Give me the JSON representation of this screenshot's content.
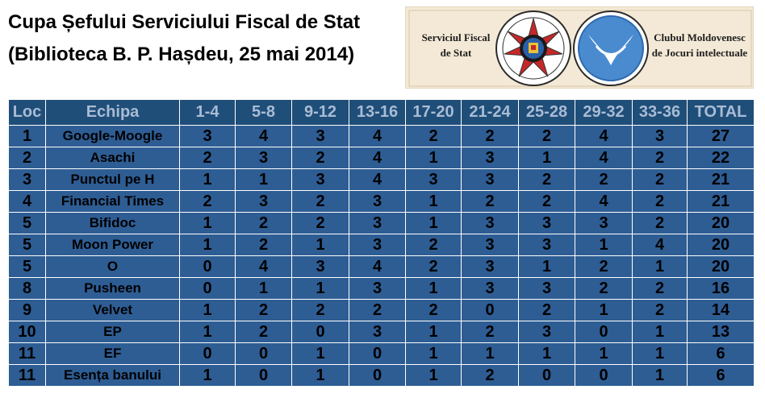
{
  "title": {
    "line1": "Cupa Șefului Serviciului Fiscal de Stat",
    "line2": "(Biblioteca B. P. Hașdeu, 25 mai 2014)"
  },
  "banner": {
    "left_line1": "Serviciul Fiscal",
    "left_line2": "de Stat",
    "right_line1": "Clubul Moldovenesc",
    "right_line2": "de Jocuri intelectuale",
    "seal_text": "SERVICIUL FISCAL",
    "emblem_icon": "tax-service-emblem-icon",
    "club_icon": "club-logo-icon"
  },
  "colors": {
    "header_bg": "#1f4e79",
    "header_text": "#a9bcd4",
    "body_bg": "#2e5d94",
    "body_text": "#000000",
    "banner_bg": "#f3e9d6"
  },
  "table": {
    "headers": [
      "Loc",
      "Echipa",
      "1-4",
      "5-8",
      "9-12",
      "13-16",
      "17-20",
      "21-24",
      "25-28",
      "29-32",
      "33-36",
      "TOTAL"
    ],
    "rows": [
      [
        "1",
        "Google-Moogle",
        "3",
        "4",
        "3",
        "4",
        "2",
        "2",
        "2",
        "4",
        "3",
        "27"
      ],
      [
        "2",
        "Asachi",
        "2",
        "3",
        "2",
        "4",
        "1",
        "3",
        "1",
        "4",
        "2",
        "22"
      ],
      [
        "3",
        "Punctul pe H",
        "1",
        "1",
        "3",
        "4",
        "3",
        "3",
        "2",
        "2",
        "2",
        "21"
      ],
      [
        "4",
        "Financial Times",
        "2",
        "3",
        "2",
        "3",
        "1",
        "2",
        "2",
        "4",
        "2",
        "21"
      ],
      [
        "5",
        "Bifidoc",
        "1",
        "2",
        "2",
        "3",
        "1",
        "3",
        "3",
        "3",
        "2",
        "20"
      ],
      [
        "5",
        "Moon Power",
        "1",
        "2",
        "1",
        "3",
        "2",
        "3",
        "3",
        "1",
        "4",
        "20"
      ],
      [
        "5",
        "O",
        "0",
        "4",
        "3",
        "4",
        "2",
        "3",
        "1",
        "2",
        "1",
        "20"
      ],
      [
        "8",
        "Pusheen",
        "0",
        "1",
        "1",
        "3",
        "1",
        "3",
        "3",
        "2",
        "2",
        "16"
      ],
      [
        "9",
        "Velvet",
        "1",
        "2",
        "2",
        "2",
        "2",
        "0",
        "2",
        "1",
        "2",
        "14"
      ],
      [
        "10",
        "EP",
        "1",
        "2",
        "0",
        "3",
        "1",
        "2",
        "3",
        "0",
        "1",
        "13"
      ],
      [
        "11",
        "EF",
        "0",
        "0",
        "1",
        "0",
        "1",
        "1",
        "1",
        "1",
        "1",
        "6"
      ],
      [
        "11",
        "Esența banului",
        "1",
        "0",
        "1",
        "0",
        "1",
        "2",
        "0",
        "0",
        "1",
        "6"
      ]
    ]
  }
}
